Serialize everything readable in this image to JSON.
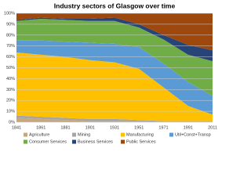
{
  "chart_data": {
    "type": "stacked-area",
    "title": "Industry sectors of Glasgow over time",
    "categories": [
      "1841",
      "1861",
      "1881",
      "1901",
      "1931",
      "1951",
      "1971",
      "1991",
      "2011"
    ],
    "series": [
      {
        "name": "Agriculture",
        "color": "#c9a77c",
        "values": [
          4,
          3,
          2,
          1,
          1,
          1,
          0.5,
          0.5,
          0.5
        ]
      },
      {
        "name": "Mining",
        "color": "#a5a5a5",
        "values": [
          2,
          2,
          2,
          2,
          2,
          1,
          0.5,
          0.5,
          0.5
        ]
      },
      {
        "name": "Manufacturing",
        "color": "#ffc000",
        "values": [
          58,
          57,
          56,
          54,
          52,
          47,
          31,
          14,
          6
        ]
      },
      {
        "name": "Util+Const+Transp",
        "color": "#5b9bd5",
        "values": [
          11,
          13,
          14,
          16,
          17,
          20,
          22,
          22,
          17
        ]
      },
      {
        "name": "Consumer Services",
        "color": "#70ad47",
        "values": [
          18,
          20,
          20,
          20,
          21,
          18,
          22,
          25,
          32
        ]
      },
      {
        "name": "Business Services",
        "color": "#264478",
        "values": [
          1,
          1,
          1,
          2,
          3,
          3,
          4,
          9,
          10
        ]
      },
      {
        "name": "Public Services",
        "color": "#9e480e",
        "values": [
          6,
          4,
          5,
          5,
          4,
          10,
          20,
          29,
          34
        ]
      }
    ],
    "ylim": [
      0,
      100
    ],
    "yticks": [
      {
        "value": 0,
        "label": "0%"
      },
      {
        "value": 10,
        "label": "10%"
      },
      {
        "value": 20,
        "label": "20%"
      },
      {
        "value": 30,
        "label": "30%"
      },
      {
        "value": 40,
        "label": "40%"
      },
      {
        "value": 50,
        "label": "50%"
      },
      {
        "value": 60,
        "label": "60%"
      },
      {
        "value": 70,
        "label": "70%"
      },
      {
        "value": 80,
        "label": "80%"
      },
      {
        "value": 90,
        "label": "90%"
      },
      {
        "value": 100,
        "label": "100%"
      }
    ],
    "grid": true
  }
}
